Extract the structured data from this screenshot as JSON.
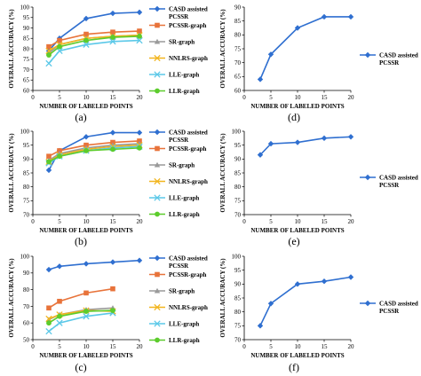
{
  "chart_data": [
    {
      "id": "a",
      "type": "line",
      "panel_label": "(a)",
      "xlabel": "NUMBER OF LABELED POINTS",
      "ylabel": "OVERALL ACCURACY (%)",
      "xlim": [
        0,
        20
      ],
      "ylim": [
        60,
        100
      ],
      "xticks": [
        0,
        5,
        10,
        15,
        20
      ],
      "yticks": [
        60,
        65,
        70,
        75,
        80,
        85,
        90,
        95,
        100
      ],
      "legend_position": "right",
      "series": [
        {
          "name": "CASD assisted PCSSR",
          "color": "#2f6fd0",
          "marker": "diamond",
          "x": [
            3,
            5,
            10,
            15,
            20
          ],
          "y": [
            79,
            85,
            94.5,
            97,
            97.5
          ]
        },
        {
          "name": "PCSSR-graph",
          "color": "#e8733a",
          "marker": "square",
          "x": [
            3,
            5,
            10,
            15,
            20
          ],
          "y": [
            81,
            84,
            87,
            88,
            88.5
          ]
        },
        {
          "name": "SR-graph",
          "color": "#9a9a9a",
          "marker": "triangle",
          "x": [
            3,
            5,
            10,
            15,
            20
          ],
          "y": [
            78,
            82,
            85,
            86,
            86.5
          ]
        },
        {
          "name": "NNLRS-graph",
          "color": "#f2b51e",
          "marker": "x",
          "x": [
            3,
            5,
            10,
            15,
            20
          ],
          "y": [
            79,
            82,
            85,
            86,
            86.5
          ]
        },
        {
          "name": "LLE-graph",
          "color": "#5bc8e8",
          "marker": "x",
          "x": [
            3,
            5,
            10,
            15,
            20
          ],
          "y": [
            73,
            79,
            82,
            83.5,
            84
          ]
        },
        {
          "name": "LLR-graph",
          "color": "#5ccc2c",
          "marker": "circle",
          "x": [
            3,
            5,
            10,
            15,
            20
          ],
          "y": [
            77,
            81,
            84,
            85.5,
            86
          ]
        }
      ]
    },
    {
      "id": "b",
      "type": "line",
      "panel_label": "(b)",
      "xlabel": "NUMBER OF LABELED POINTS",
      "ylabel": "OVERALL ACCURACY (%)",
      "xlim": [
        0,
        20
      ],
      "ylim": [
        70,
        100
      ],
      "xticks": [
        0,
        5,
        10,
        15,
        20
      ],
      "yticks": [
        70,
        75,
        80,
        85,
        90,
        95,
        100
      ],
      "legend_position": "right",
      "series": [
        {
          "name": "CASD assisted PCSSR",
          "color": "#2f6fd0",
          "marker": "diamond",
          "x": [
            3,
            5,
            10,
            15,
            20
          ],
          "y": [
            86,
            93,
            98,
            99.5,
            99.5
          ]
        },
        {
          "name": "PCSSR-graph",
          "color": "#e8733a",
          "marker": "square",
          "x": [
            3,
            5,
            10,
            15,
            20
          ],
          "y": [
            91,
            93,
            95,
            96,
            96.5
          ]
        },
        {
          "name": "SR-graph",
          "color": "#9a9a9a",
          "marker": "triangle",
          "x": [
            3,
            5,
            10,
            15,
            20
          ],
          "y": [
            89.5,
            92,
            94,
            95,
            95.5
          ]
        },
        {
          "name": "NNLRS-graph",
          "color": "#f2b51e",
          "marker": "x",
          "x": [
            3,
            5,
            10,
            15,
            20
          ],
          "y": [
            89,
            91.5,
            93.5,
            94.5,
            95
          ]
        },
        {
          "name": "LLE-graph",
          "color": "#5bc8e8",
          "marker": "x",
          "x": [
            3,
            5,
            10,
            15,
            20
          ],
          "y": [
            88.5,
            91,
            93,
            94,
            94.5
          ]
        },
        {
          "name": "LLR-graph",
          "color": "#5ccc2c",
          "marker": "circle",
          "x": [
            3,
            5,
            10,
            15,
            20
          ],
          "y": [
            89,
            91,
            93,
            93.5,
            94
          ]
        }
      ]
    },
    {
      "id": "c",
      "type": "line",
      "panel_label": "(c)",
      "xlabel": "NUMBER OF LABELED POINTS",
      "ylabel": "OVERALL ACCURACY (%)",
      "xlim": [
        0,
        20
      ],
      "ylim": [
        50,
        100
      ],
      "xticks": [
        0,
        5,
        10,
        15,
        20
      ],
      "yticks": [
        50,
        60,
        70,
        80,
        90,
        100
      ],
      "legend_position": "right",
      "series": [
        {
          "name": "CASD assisted PCSSR",
          "color": "#2f6fd0",
          "marker": "diamond",
          "x": [
            3,
            5,
            10,
            15,
            20
          ],
          "y": [
            92,
            94,
            95.5,
            96.5,
            97.5
          ]
        },
        {
          "name": "PCSSR-graph",
          "color": "#e8733a",
          "marker": "square",
          "x": [
            3,
            5,
            10,
            15
          ],
          "y": [
            69,
            73,
            78,
            80.5
          ]
        },
        {
          "name": "SR-graph",
          "color": "#9a9a9a",
          "marker": "triangle",
          "x": [
            3,
            5,
            10,
            15
          ],
          "y": [
            62,
            65,
            68,
            69
          ]
        },
        {
          "name": "NNLRS-graph",
          "color": "#f2b51e",
          "marker": "x",
          "x": [
            3,
            5,
            10,
            15
          ],
          "y": [
            62.5,
            65,
            67.5,
            67
          ]
        },
        {
          "name": "LLE-graph",
          "color": "#5bc8e8",
          "marker": "x",
          "x": [
            3,
            5,
            10,
            15
          ],
          "y": [
            55,
            60,
            64,
            66
          ]
        },
        {
          "name": "LLR-graph",
          "color": "#5ccc2c",
          "marker": "circle",
          "x": [
            3,
            5,
            10,
            15
          ],
          "y": [
            60,
            64,
            67,
            67.5
          ]
        }
      ]
    },
    {
      "id": "d",
      "type": "line",
      "panel_label": "(d)",
      "xlabel": "NUMBER OF LABELED POINTS",
      "ylabel": "OVERALL ACCURACY (%)",
      "xlim": [
        0,
        20
      ],
      "ylim": [
        60,
        90
      ],
      "xticks": [
        0,
        5,
        10,
        15,
        20
      ],
      "yticks": [
        60,
        65,
        70,
        75,
        80,
        85,
        90
      ],
      "legend_position": "right",
      "series": [
        {
          "name": "CASD assisted PCSSR",
          "color": "#2f6fd0",
          "marker": "diamond",
          "x": [
            3,
            5,
            10,
            15,
            20
          ],
          "y": [
            64,
            73,
            82.5,
            86.5,
            86.5
          ]
        }
      ]
    },
    {
      "id": "e",
      "type": "line",
      "panel_label": "(e)",
      "xlabel": "NUMBER OF LABELED POINTS",
      "ylabel": "OVERALL ACCURACY (%)",
      "xlim": [
        0,
        20
      ],
      "ylim": [
        70,
        100
      ],
      "xticks": [
        0,
        5,
        10,
        15,
        20
      ],
      "yticks": [
        70,
        75,
        80,
        85,
        90,
        95,
        100
      ],
      "legend_position": "right",
      "series": [
        {
          "name": "CASD assisted PCSSR",
          "color": "#2f6fd0",
          "marker": "diamond",
          "x": [
            3,
            5,
            10,
            15,
            20
          ],
          "y": [
            91.5,
            95.5,
            96,
            97.5,
            98
          ]
        }
      ]
    },
    {
      "id": "f",
      "type": "line",
      "panel_label": "(f)",
      "xlabel": "NUMBER OF LABELED POINTS",
      "ylabel": "OVERALL ACCURACY (%)",
      "xlim": [
        0,
        20
      ],
      "ylim": [
        70,
        100
      ],
      "xticks": [
        0,
        5,
        10,
        15,
        20
      ],
      "yticks": [
        70,
        75,
        80,
        85,
        90,
        95,
        100
      ],
      "legend_position": "right",
      "series": [
        {
          "name": "CASD assisted PCSSR",
          "color": "#2f6fd0",
          "marker": "diamond",
          "x": [
            3,
            5,
            10,
            15,
            20
          ],
          "y": [
            75,
            83,
            90,
            91,
            92.5
          ]
        }
      ]
    }
  ]
}
